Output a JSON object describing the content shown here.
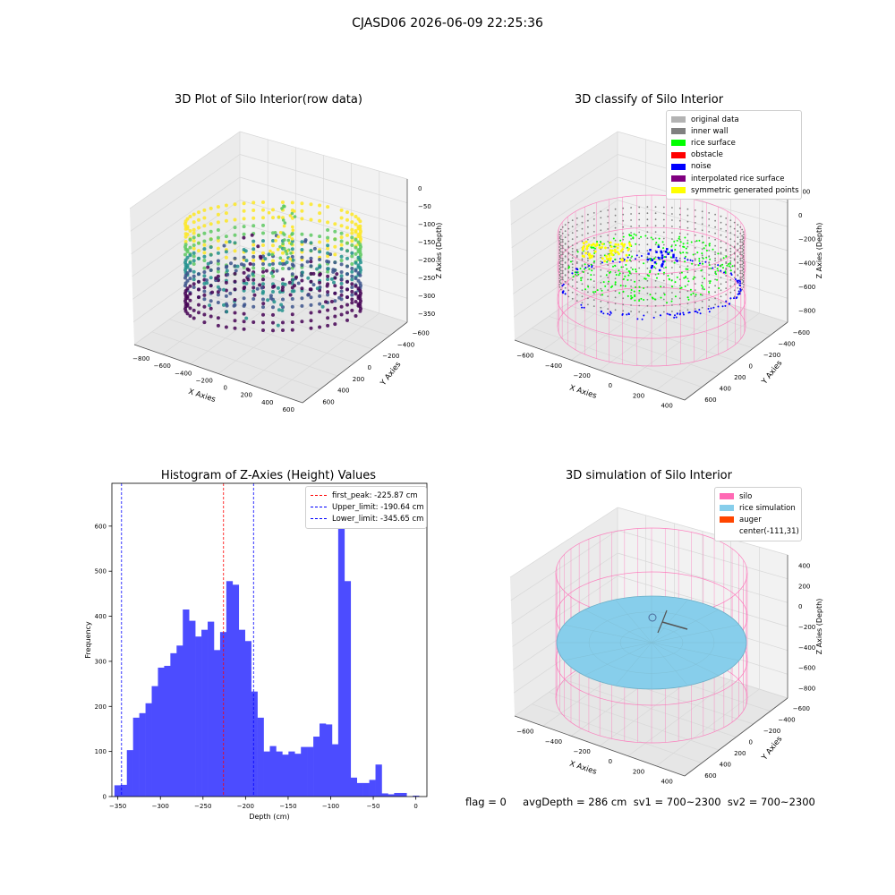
{
  "suptitle": "CJASD06 2026-06-09 22:25:36",
  "colors": {
    "viridis": [
      "#440154",
      "#3b528b",
      "#21918c",
      "#5ec962",
      "#fde725"
    ],
    "original_data": "#b3b3b3",
    "inner_wall": "#808080",
    "rice_surface": "#00ff00",
    "obstacle": "#ff0000",
    "noise": "#0000ff",
    "interpolated_rice_surface": "#800080",
    "symmetric_generated_points": "#ffff00",
    "silo": "#ff69b4",
    "rice_simulation": "#87ceeb",
    "auger": "#ff4500",
    "hist_bar": "#4c4cff",
    "peak_line": "#ff0000",
    "limit_line": "#0000ff"
  },
  "chart_data": [
    {
      "type": "scatter3d",
      "title": "3D Plot of Silo Interior(row data)",
      "xlabel": "X Axies",
      "ylabel": "Y Axies",
      "zlabel": "Z Axies (Depth)",
      "x_ticks": [
        "−800",
        "−600",
        "−400",
        "−200",
        "0",
        "200",
        "400",
        "600"
      ],
      "y_ticks": [
        "−600",
        "−400",
        "−200",
        "0",
        "200",
        "400",
        "600"
      ],
      "z_ticks": [
        "0",
        "−50",
        "−100",
        "−150",
        "−200",
        "−250",
        "−300",
        "−350"
      ],
      "colormap": "viridis",
      "grid": true
    },
    {
      "type": "scatter3d",
      "title": "3D classify of Silo Interior",
      "xlabel": "X Axies",
      "ylabel": "Y Axies",
      "zlabel": "Z Axies (Depth)",
      "x_ticks": [
        "−600",
        "−400",
        "−200",
        "0",
        "200",
        "400"
      ],
      "y_ticks": [
        "−600",
        "−400",
        "−200",
        "0",
        "200",
        "400",
        "600"
      ],
      "z_ticks": [
        "200",
        "0",
        "−200",
        "−400",
        "−600",
        "−800"
      ],
      "legend_position": "top-right",
      "legend": [
        "original data",
        "inner wall",
        "rice surface",
        "obstacle",
        "noise",
        "interpolated rice surface",
        "symmetric generated points"
      ],
      "grid": true
    },
    {
      "type": "bar",
      "title": "Histogram of Z-Axies (Height) Values",
      "xlabel": "Depth (cm)",
      "ylabel": "Frequency",
      "xlim": [
        -357,
        13
      ],
      "ylim": [
        0,
        695
      ],
      "x_ticks": [
        -350,
        -300,
        -250,
        -200,
        -150,
        -100,
        -50,
        0
      ],
      "y_ticks": [
        0,
        100,
        200,
        300,
        400,
        500,
        600
      ],
      "bin_start": -354,
      "bin_width": 7.3,
      "values": [
        25,
        26,
        103,
        175,
        185,
        207,
        245,
        286,
        290,
        318,
        335,
        415,
        390,
        355,
        370,
        388,
        325,
        365,
        478,
        470,
        370,
        345,
        233,
        175,
        100,
        112,
        100,
        93,
        100,
        95,
        110,
        110,
        133,
        162,
        160,
        116,
        660,
        478,
        42,
        30,
        30,
        37,
        71,
        7,
        5,
        8,
        8,
        0,
        2,
        0
      ],
      "lines": [
        {
          "label": "first_peak: -225.87 cm",
          "x": -225.87,
          "color_key": "peak_line"
        },
        {
          "label": "Upper_limit: -190.64 cm",
          "x": -190.64,
          "color_key": "limit_line"
        },
        {
          "label": "Lower_limit: -345.65 cm",
          "x": -345.65,
          "color_key": "limit_line"
        }
      ],
      "legend_position": "top-right",
      "grid": false
    },
    {
      "type": "scatter3d",
      "title": "3D simulation of Silo Interior",
      "xlabel": "X Axies",
      "ylabel": "Y Axies",
      "zlabel": "Z Axies (Depth)",
      "x_ticks": [
        "−600",
        "−400",
        "−200",
        "0",
        "200",
        "400"
      ],
      "y_ticks": [
        "−600",
        "−400",
        "−200",
        "0",
        "200",
        "400",
        "600"
      ],
      "z_ticks": [
        "400",
        "200",
        "0",
        "−200",
        "−400",
        "−600",
        "−800"
      ],
      "legend_position": "top-right",
      "legend": [
        "silo",
        "rice simulation",
        "auger",
        "center(-111,31)"
      ],
      "grid": true
    }
  ],
  "status_text": "flag = 0     avgDepth = 286 cm  sv1 = 700~2300  sv2 = 700~2300"
}
